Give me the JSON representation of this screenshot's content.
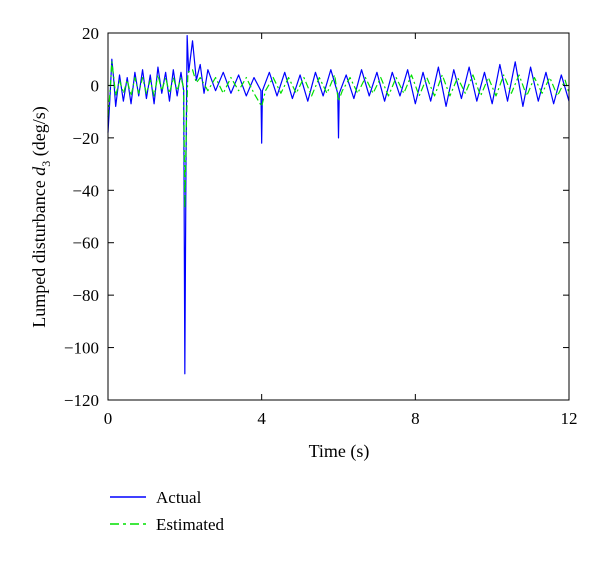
{
  "chart_data": {
    "type": "line",
    "xlabel": "Time (s)",
    "ylabel_prefix": "Lumped disturbance ",
    "ylabel_symbol": "d",
    "ylabel_subscript": "3",
    "ylabel_suffix": " (deg/s)",
    "xlim": [
      0,
      12
    ],
    "ylim": [
      -120,
      20
    ],
    "xticks": [
      0,
      4,
      8,
      12
    ],
    "yticks": [
      20,
      0,
      -20,
      -40,
      -60,
      -80,
      -100,
      -120
    ],
    "grid": false,
    "legend_position": "below-left",
    "series": [
      {
        "name": "Actual",
        "color": "#0000ff",
        "style": "solid",
        "points": [
          [
            0.0,
            -18
          ],
          [
            0.05,
            -5
          ],
          [
            0.1,
            10
          ],
          [
            0.15,
            2
          ],
          [
            0.2,
            -8
          ],
          [
            0.3,
            4
          ],
          [
            0.4,
            -6
          ],
          [
            0.5,
            3
          ],
          [
            0.6,
            -7
          ],
          [
            0.7,
            5
          ],
          [
            0.8,
            -4
          ],
          [
            0.9,
            6
          ],
          [
            1.0,
            -5
          ],
          [
            1.1,
            4
          ],
          [
            1.2,
            -7
          ],
          [
            1.3,
            7
          ],
          [
            1.4,
            -3
          ],
          [
            1.5,
            5
          ],
          [
            1.6,
            -6
          ],
          [
            1.7,
            6
          ],
          [
            1.8,
            -4
          ],
          [
            1.9,
            5
          ],
          [
            1.97,
            -2
          ],
          [
            2.0,
            -110
          ],
          [
            2.03,
            -30
          ],
          [
            2.06,
            19
          ],
          [
            2.1,
            5
          ],
          [
            2.2,
            17
          ],
          [
            2.3,
            2
          ],
          [
            2.4,
            8
          ],
          [
            2.5,
            -3
          ],
          [
            2.6,
            6
          ],
          [
            2.8,
            -2
          ],
          [
            3.0,
            5
          ],
          [
            3.2,
            -3
          ],
          [
            3.4,
            4
          ],
          [
            3.6,
            -4
          ],
          [
            3.8,
            3
          ],
          [
            3.98,
            -2
          ],
          [
            4.0,
            -22
          ],
          [
            4.02,
            -2
          ],
          [
            4.2,
            5
          ],
          [
            4.4,
            -4
          ],
          [
            4.6,
            5
          ],
          [
            4.8,
            -5
          ],
          [
            5.0,
            4
          ],
          [
            5.2,
            -6
          ],
          [
            5.4,
            5
          ],
          [
            5.6,
            -4
          ],
          [
            5.8,
            6
          ],
          [
            5.98,
            -3
          ],
          [
            6.0,
            -20
          ],
          [
            6.02,
            -3
          ],
          [
            6.2,
            4
          ],
          [
            6.4,
            -5
          ],
          [
            6.6,
            6
          ],
          [
            6.8,
            -4
          ],
          [
            7.0,
            5
          ],
          [
            7.2,
            -6
          ],
          [
            7.4,
            5
          ],
          [
            7.6,
            -4
          ],
          [
            7.8,
            6
          ],
          [
            8.0,
            -7
          ],
          [
            8.2,
            5
          ],
          [
            8.4,
            -6
          ],
          [
            8.6,
            7
          ],
          [
            8.8,
            -8
          ],
          [
            9.0,
            6
          ],
          [
            9.2,
            -5
          ],
          [
            9.4,
            7
          ],
          [
            9.6,
            -6
          ],
          [
            9.8,
            5
          ],
          [
            10.0,
            -7
          ],
          [
            10.2,
            8
          ],
          [
            10.4,
            -6
          ],
          [
            10.6,
            9
          ],
          [
            10.8,
            -8
          ],
          [
            11.0,
            7
          ],
          [
            11.2,
            -6
          ],
          [
            11.4,
            5
          ],
          [
            11.6,
            -7
          ],
          [
            11.8,
            4
          ],
          [
            12.0,
            -6
          ]
        ]
      },
      {
        "name": "Estimated",
        "color": "#00e000",
        "style": "dashdot",
        "points": [
          [
            0.0,
            -12
          ],
          [
            0.05,
            -3
          ],
          [
            0.1,
            9
          ],
          [
            0.15,
            3
          ],
          [
            0.2,
            -4
          ],
          [
            0.3,
            2
          ],
          [
            0.4,
            -3
          ],
          [
            0.5,
            2
          ],
          [
            0.6,
            -4
          ],
          [
            0.7,
            3
          ],
          [
            0.8,
            -3
          ],
          [
            0.9,
            3
          ],
          [
            1.0,
            -3
          ],
          [
            1.1,
            2
          ],
          [
            1.2,
            -4
          ],
          [
            1.3,
            4
          ],
          [
            1.4,
            -2
          ],
          [
            1.5,
            3
          ],
          [
            1.6,
            -3
          ],
          [
            1.7,
            3
          ],
          [
            1.8,
            -2
          ],
          [
            1.9,
            3
          ],
          [
            1.97,
            -1
          ],
          [
            2.0,
            -47
          ],
          [
            2.04,
            -15
          ],
          [
            2.08,
            5
          ],
          [
            2.2,
            6
          ],
          [
            2.3,
            1
          ],
          [
            2.4,
            3
          ],
          [
            2.6,
            -2
          ],
          [
            2.8,
            3
          ],
          [
            3.0,
            -3
          ],
          [
            3.2,
            3
          ],
          [
            3.4,
            -2
          ],
          [
            3.6,
            3
          ],
          [
            3.8,
            -3
          ],
          [
            4.0,
            -8
          ],
          [
            4.1,
            -2
          ],
          [
            4.3,
            3
          ],
          [
            4.5,
            -3
          ],
          [
            4.7,
            3
          ],
          [
            4.9,
            -3
          ],
          [
            5.1,
            3
          ],
          [
            5.3,
            -4
          ],
          [
            5.5,
            3
          ],
          [
            5.7,
            -3
          ],
          [
            5.9,
            4
          ],
          [
            6.0,
            -6
          ],
          [
            6.1,
            -2
          ],
          [
            6.3,
            3
          ],
          [
            6.5,
            -3
          ],
          [
            6.7,
            3
          ],
          [
            6.9,
            -3
          ],
          [
            7.1,
            3
          ],
          [
            7.3,
            -4
          ],
          [
            7.5,
            3
          ],
          [
            7.7,
            -3
          ],
          [
            7.9,
            4
          ],
          [
            8.1,
            -4
          ],
          [
            8.3,
            3
          ],
          [
            8.5,
            -4
          ],
          [
            8.7,
            4
          ],
          [
            8.9,
            -4
          ],
          [
            9.1,
            3
          ],
          [
            9.3,
            -3
          ],
          [
            9.5,
            4
          ],
          [
            9.7,
            -4
          ],
          [
            9.9,
            3
          ],
          [
            10.1,
            -4
          ],
          [
            10.3,
            4
          ],
          [
            10.5,
            -3
          ],
          [
            10.7,
            4
          ],
          [
            10.9,
            -4
          ],
          [
            11.1,
            3
          ],
          [
            11.3,
            -3
          ],
          [
            11.5,
            3
          ],
          [
            11.7,
            -4
          ],
          [
            11.9,
            2
          ],
          [
            12.0,
            -3
          ]
        ]
      }
    ]
  }
}
